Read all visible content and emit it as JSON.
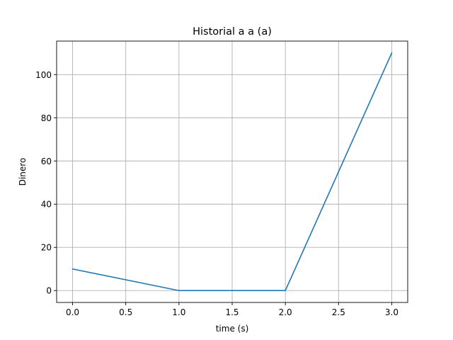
{
  "chart_data": {
    "type": "line",
    "title": "Historial a a (a)",
    "xlabel": "time (s)",
    "ylabel": "Dinero",
    "x": [
      0,
      1,
      2,
      3
    ],
    "series": [
      {
        "values": [
          10,
          0,
          0,
          110
        ],
        "color": "#1f77b4"
      }
    ],
    "xlim": [
      -0.15,
      3.15
    ],
    "ylim": [
      -5.5,
      115.5
    ],
    "xticks": [
      0.0,
      0.5,
      1.0,
      1.5,
      2.0,
      2.5,
      3.0
    ],
    "xtick_labels": [
      "0.0",
      "0.5",
      "1.0",
      "1.5",
      "2.0",
      "2.5",
      "3.0"
    ],
    "yticks": [
      0,
      20,
      40,
      60,
      80,
      100
    ],
    "ytick_labels": [
      "0",
      "20",
      "40",
      "60",
      "80",
      "100"
    ],
    "grid": true
  }
}
